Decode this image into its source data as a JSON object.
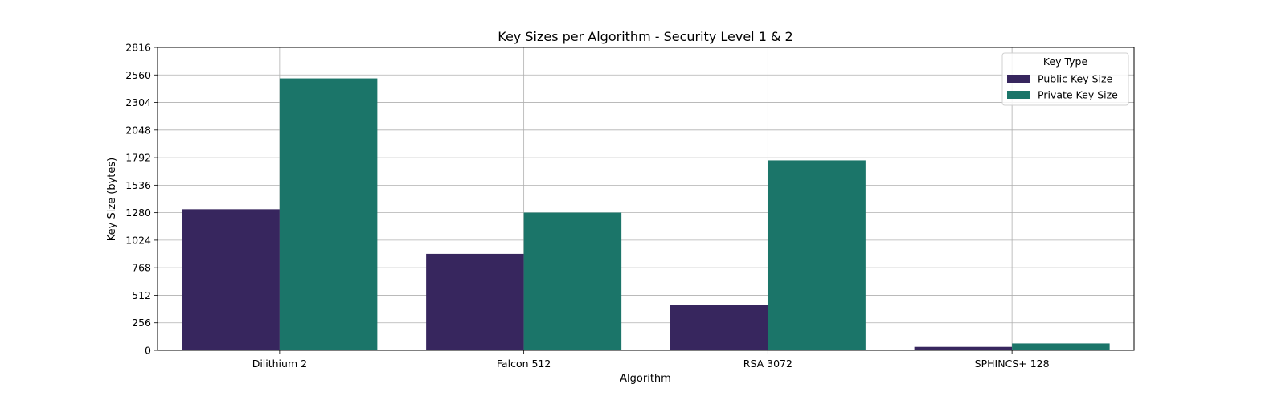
{
  "chart_data": {
    "type": "bar",
    "title": "Key Sizes per Algorithm - Security Level 1 & 2",
    "xlabel": "Algorithm",
    "ylabel": "Key Size (bytes)",
    "categories": [
      "Dilithium 2",
      "Falcon 512",
      "RSA 3072",
      "SPHINCS+ 128"
    ],
    "series": [
      {
        "name": "Public Key Size",
        "values": [
          1312,
          897,
          422,
          32
        ],
        "color": "#37265e"
      },
      {
        "name": "Private Key Size",
        "values": [
          2528,
          1281,
          1767,
          64
        ],
        "color": "#1b7569"
      }
    ],
    "ylim": [
      0,
      2816
    ],
    "yticks": [
      0,
      256,
      512,
      768,
      1024,
      1280,
      1536,
      1792,
      2048,
      2304,
      2560,
      2816
    ],
    "grid": true,
    "legend": {
      "title": "Key Type",
      "position": "top-right"
    }
  }
}
